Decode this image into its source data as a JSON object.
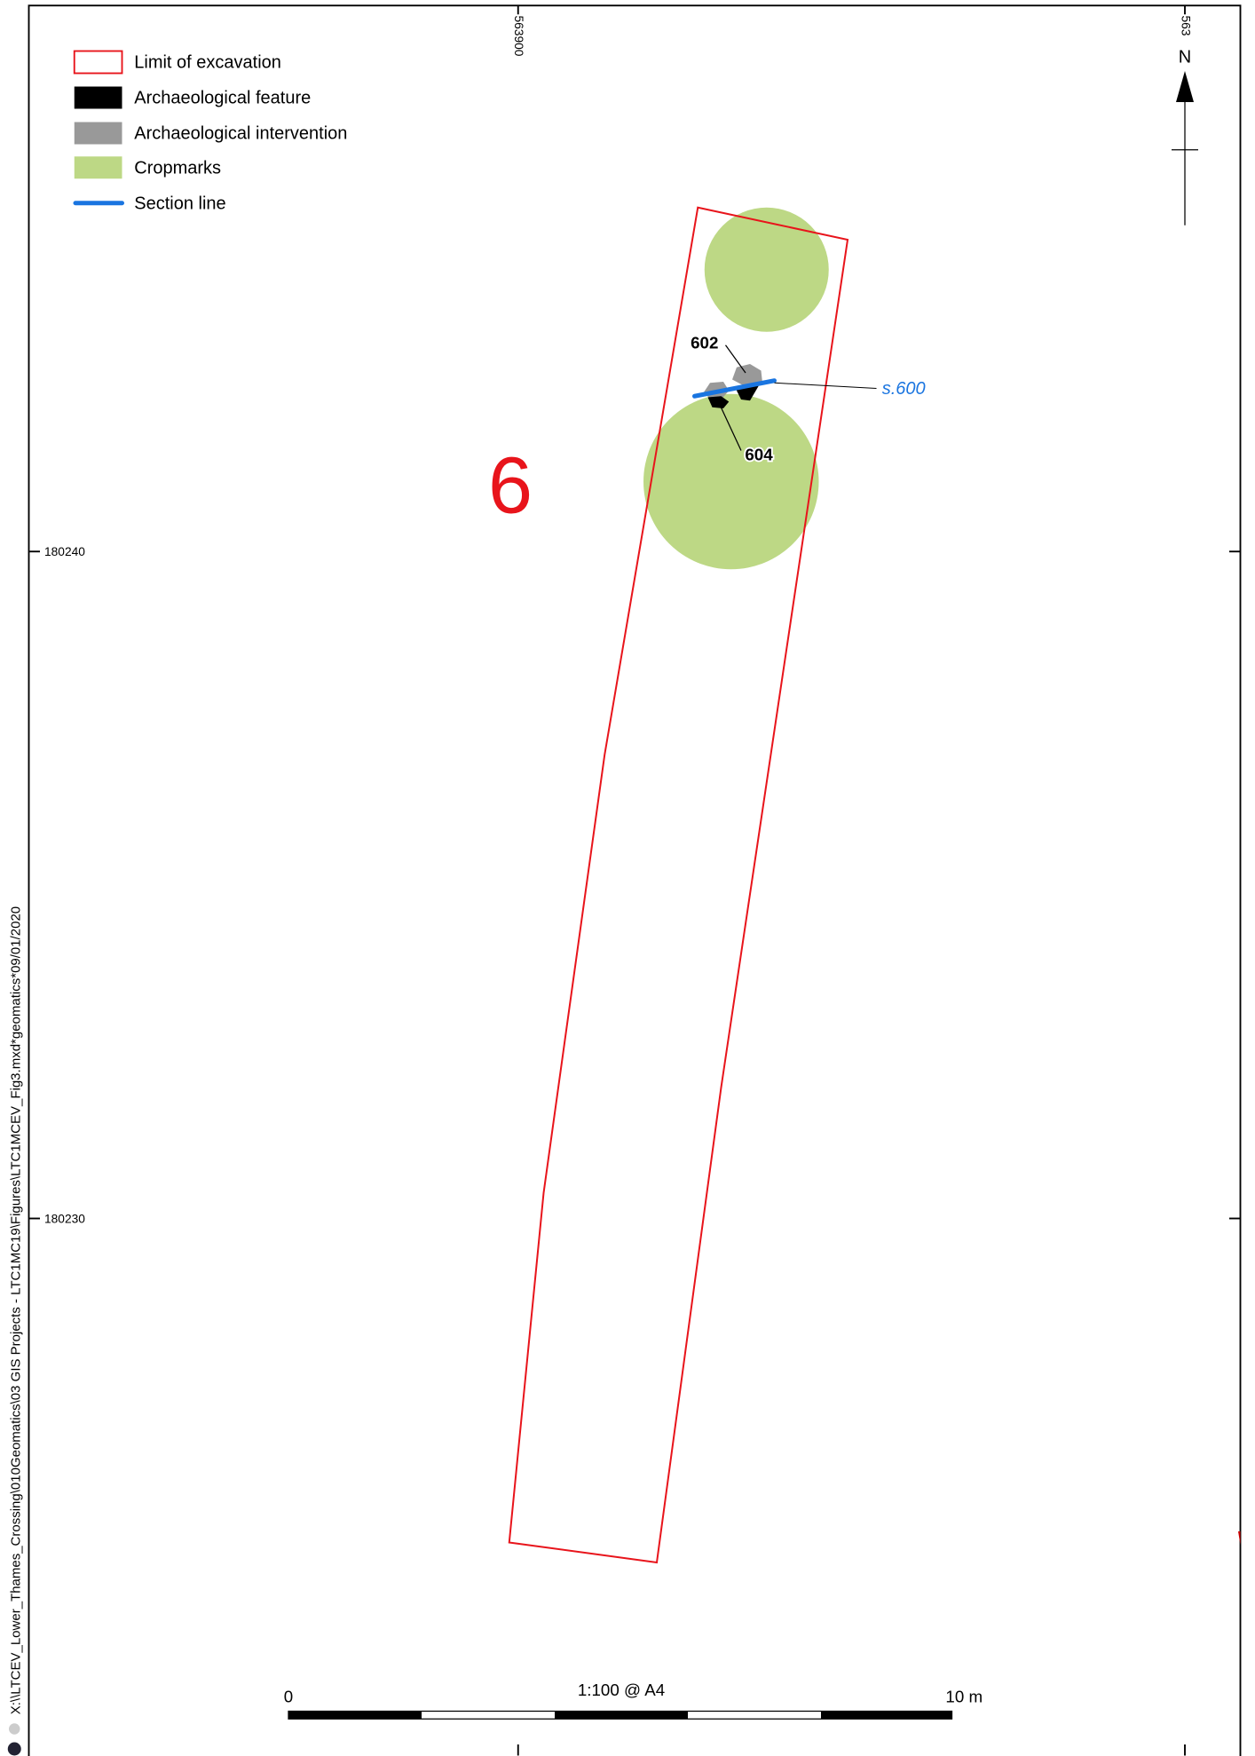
{
  "legend": {
    "items": [
      {
        "label": "Limit of excavation"
      },
      {
        "label": "Archaeological feature"
      },
      {
        "label": "Archaeological intervention"
      },
      {
        "label": "Cropmarks"
      },
      {
        "label": "Section line"
      }
    ]
  },
  "grid": {
    "eastings": [
      "563900",
      "563"
    ],
    "northings": [
      "180240",
      "180230"
    ]
  },
  "trench": "6",
  "features": [
    "602",
    "604"
  ],
  "section": "s.600",
  "north": "N",
  "scale_bar": {
    "start": "0",
    "end": "10 m",
    "ratio": "1:100 @ A4"
  },
  "file_path": "X:\\\\LTCEV_Lower_Thames_Crossing\\010Geomatics\\03 GIS Projects - LTC1MC19\\Figures\\LTC1MCEV_Fig3.mxd*geomatics*09/01/2020"
}
